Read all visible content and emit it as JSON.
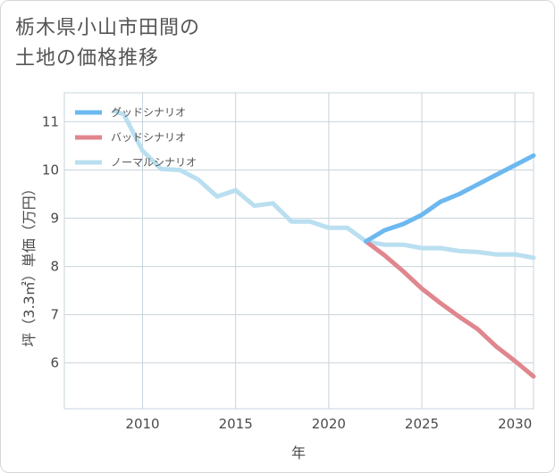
{
  "page": {
    "title_line1": "栃木県小山市田間の",
    "title_line2": "土地の価格推移"
  },
  "chart_data": {
    "type": "line",
    "xlabel": "年",
    "ylabel": "坪（3.3㎡）単価（万円）",
    "xlim": [
      2005.8,
      2031
    ],
    "ylim": [
      5.05,
      11.6
    ],
    "xticks": [
      2010,
      2015,
      2020,
      2025,
      2030
    ],
    "yticks": [
      6,
      7,
      8,
      9,
      10,
      11
    ],
    "grid": true,
    "legend_position": "top-left",
    "series": [
      {
        "name": "グッドシナリオ",
        "color": "#6cb8f0",
        "x": [
          2022,
          2023,
          2024,
          2025,
          2026,
          2027,
          2028,
          2029,
          2030,
          2031
        ],
        "y": [
          8.52,
          8.75,
          8.88,
          9.07,
          9.34,
          9.5,
          9.7,
          9.9,
          10.1,
          10.3
        ]
      },
      {
        "name": "バッドシナリオ",
        "color": "#e0868e",
        "x": [
          2022,
          2023,
          2024,
          2025,
          2026,
          2027,
          2028,
          2029,
          2030,
          2031
        ],
        "y": [
          8.52,
          8.23,
          7.9,
          7.54,
          7.24,
          6.96,
          6.7,
          6.34,
          6.04,
          5.72
        ]
      },
      {
        "name": "ノーマルシナリオ",
        "color": "#b9dff0",
        "x": [
          2008.5,
          2009,
          2010,
          2011,
          2012,
          2013,
          2014,
          2015,
          2016,
          2017,
          2018,
          2019,
          2020,
          2021,
          2022,
          2023,
          2024,
          2025,
          2026,
          2027,
          2028,
          2029,
          2030,
          2031
        ],
        "y": [
          11.22,
          11.15,
          10.4,
          10.02,
          10.0,
          9.8,
          9.45,
          9.58,
          9.26,
          9.31,
          8.93,
          8.93,
          8.8,
          8.8,
          8.52,
          8.45,
          8.45,
          8.38,
          8.38,
          8.32,
          8.3,
          8.25,
          8.25,
          8.18
        ]
      }
    ]
  }
}
